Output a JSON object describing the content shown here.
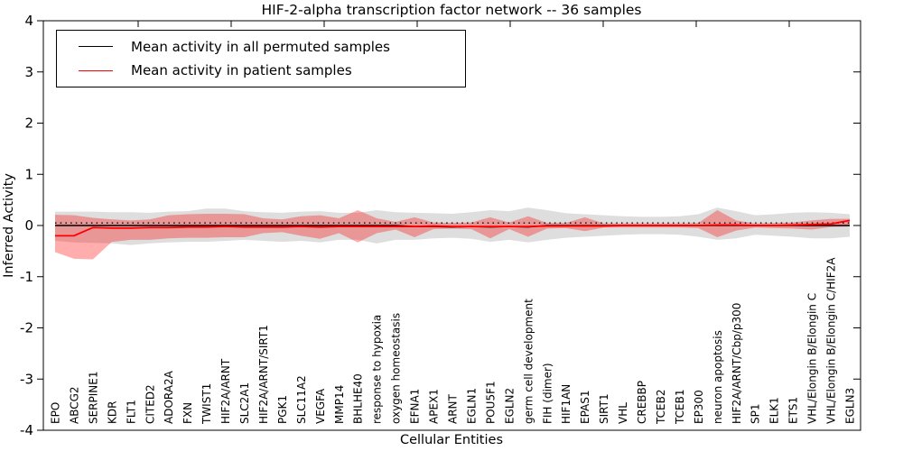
{
  "figure": {
    "title": "HIF-2-alpha transcription factor network -- 36 samples"
  },
  "legend": {
    "items": [
      {
        "label": "Mean activity in all permuted samples",
        "color": "#000000"
      },
      {
        "label": "Mean activity in patient samples",
        "color": "#ff0000"
      }
    ]
  },
  "colors": {
    "permuted_line": "#000000",
    "patient_line": "#ff0000",
    "permuted_band": "rgba(0,0,0,0.13)",
    "patient_band": "rgba(255,0,0,0.32)",
    "frame": "#000000",
    "background": "#ffffff"
  },
  "chart_data": {
    "type": "line",
    "title": "HIF-2-alpha transcription factor network -- 36 samples",
    "xlabel": "Cellular Entities",
    "ylabel": "Inferred Activity",
    "ylim": [
      -4,
      4
    ],
    "grid": false,
    "legend_position": "upper left",
    "yticks": [
      4,
      3,
      2,
      1,
      0,
      -1,
      -2,
      -3,
      -4
    ],
    "ytick_labels": [
      "4",
      "3",
      "2",
      "1",
      "0",
      "-1",
      "-2",
      "-3",
      "-4"
    ],
    "categories": [
      "EPO",
      "ABCG2",
      "SERPINE1",
      "KDR",
      "FLT1",
      "CITED2",
      "ADORA2A",
      "FXN",
      "TWIST1",
      "HIF2A/ARNT",
      "SLC2A1",
      "HIF2A/ARNT/SIRT1",
      "PGK1",
      "SLC11A2",
      "VEGFA",
      "MMP14",
      "BHLHE40",
      "response to hypoxia",
      "oxygen homeostasis",
      "EFNA1",
      "APEX1",
      "ARNT",
      "EGLN1",
      "POU5F1",
      "EGLN2",
      "germ cell development",
      "FIH (dimer)",
      "HIF1AN",
      "EPAS1",
      "SIRT1",
      "VHL",
      "CREBBP",
      "TCEB2",
      "TCEB1",
      "EP300",
      "neuron apoptosis",
      "HIF2A/ARNT/Cbp/p300",
      "SP1",
      "ELK1",
      "ETS1",
      "VHL/Elongin B/Elongin C",
      "VHL/Elongin B/Elongin C/HIF2A",
      "EGLN3"
    ],
    "series": [
      {
        "name": "Mean activity in all permuted samples",
        "type": "line",
        "style": "solid",
        "color": "#000000",
        "values": [
          0,
          0,
          0,
          0,
          0,
          0,
          0,
          0,
          0,
          0,
          0,
          0,
          0,
          0,
          0,
          0,
          0,
          0,
          0,
          -0.02,
          -0.02,
          -0.03,
          -0.02,
          -0.03,
          -0.02,
          -0.03,
          0,
          0,
          0,
          0,
          0,
          0,
          0,
          0,
          0,
          0,
          0,
          0,
          0,
          0,
          0,
          0,
          0
        ]
      },
      {
        "name": "Permuted activity dotted overlay",
        "type": "line",
        "style": "dotted",
        "color": "#000000",
        "constant": 0.05
      },
      {
        "name": "Mean activity in patient samples",
        "type": "line",
        "style": "solid",
        "color": "#ff0000",
        "values": [
          -0.2,
          -0.2,
          -0.04,
          -0.05,
          -0.05,
          -0.04,
          -0.04,
          -0.03,
          -0.03,
          -0.02,
          -0.03,
          -0.03,
          -0.03,
          -0.02,
          -0.03,
          -0.02,
          -0.02,
          -0.02,
          -0.02,
          -0.02,
          -0.01,
          -0.02,
          -0.02,
          -0.02,
          -0.02,
          -0.02,
          -0.01,
          -0.01,
          -0.01,
          -0.01,
          0,
          0,
          0,
          0,
          0,
          0.01,
          0.01,
          0,
          0,
          0.01,
          0.02,
          0.03,
          0.1
        ]
      },
      {
        "name": "Permuted activity range",
        "type": "band",
        "color": "rgba(0,0,0,0.13)",
        "upper": [
          0.27,
          0.27,
          0.27,
          0.26,
          0.26,
          0.25,
          0.27,
          0.28,
          0.33,
          0.33,
          0.28,
          0.26,
          0.25,
          0.27,
          0.28,
          0.25,
          0.25,
          0.3,
          0.26,
          0.25,
          0.24,
          0.23,
          0.26,
          0.3,
          0.28,
          0.35,
          0.3,
          0.24,
          0.22,
          0.2,
          0.18,
          0.17,
          0.17,
          0.18,
          0.22,
          0.35,
          0.28,
          0.2,
          0.22,
          0.25,
          0.26,
          0.25,
          0.22
        ],
        "lower": [
          -0.3,
          -0.33,
          -0.34,
          -0.35,
          -0.38,
          -0.35,
          -0.33,
          -0.32,
          -0.32,
          -0.3,
          -0.28,
          -0.3,
          -0.32,
          -0.3,
          -0.33,
          -0.28,
          -0.28,
          -0.35,
          -0.28,
          -0.28,
          -0.25,
          -0.24,
          -0.26,
          -0.32,
          -0.28,
          -0.33,
          -0.28,
          -0.24,
          -0.22,
          -0.2,
          -0.18,
          -0.17,
          -0.17,
          -0.18,
          -0.22,
          -0.28,
          -0.25,
          -0.18,
          -0.2,
          -0.22,
          -0.25,
          -0.25,
          -0.22
        ]
      },
      {
        "name": "Patient activity range",
        "type": "band",
        "color": "rgba(255,0,0,0.32)",
        "upper": [
          0.21,
          0.2,
          0.15,
          0.12,
          0.1,
          0.12,
          0.2,
          0.22,
          0.23,
          0.23,
          0.22,
          0.14,
          0.12,
          0.18,
          0.2,
          0.14,
          0.3,
          0.14,
          0.07,
          0.16,
          0.06,
          0.05,
          0.06,
          0.16,
          0.06,
          0.18,
          0.05,
          0.05,
          0.16,
          0.04,
          0.04,
          0.04,
          0.04,
          0.04,
          0.05,
          0.3,
          0.1,
          0.04,
          0.05,
          0.06,
          0.1,
          0.13,
          0.13
        ],
        "lower": [
          -0.52,
          -0.65,
          -0.66,
          -0.32,
          -0.28,
          -0.28,
          -0.25,
          -0.24,
          -0.24,
          -0.23,
          -0.23,
          -0.15,
          -0.13,
          -0.2,
          -0.26,
          -0.15,
          -0.33,
          -0.15,
          -0.08,
          -0.23,
          -0.07,
          -0.06,
          -0.07,
          -0.25,
          -0.07,
          -0.22,
          -0.06,
          -0.05,
          -0.11,
          -0.04,
          -0.04,
          -0.04,
          -0.04,
          -0.04,
          -0.05,
          -0.23,
          -0.1,
          -0.04,
          -0.05,
          -0.06,
          -0.08,
          -0.03,
          -0.02
        ]
      }
    ]
  }
}
